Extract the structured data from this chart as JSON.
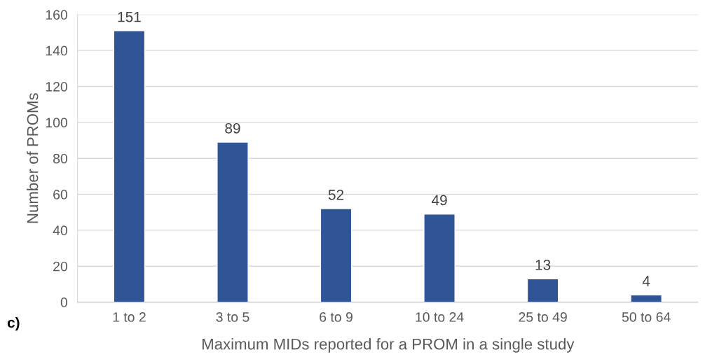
{
  "chart_data": {
    "type": "bar",
    "xlabel": "Maximum MIDs reported for a PROM in a single study",
    "ylabel": "Number of PROMs",
    "categories": [
      "1 to 2",
      "3 to 5",
      "6 to 9",
      "10 to 24",
      "25 to 49",
      "50 to 64"
    ],
    "values": [
      151,
      89,
      52,
      49,
      13,
      4
    ],
    "color": "#2f5597",
    "ylim": [
      0,
      160
    ],
    "yticks": [
      0,
      20,
      40,
      60,
      80,
      100,
      120,
      140,
      160
    ],
    "grid": "y",
    "data_labels": true,
    "annotations": [
      "c)"
    ]
  }
}
